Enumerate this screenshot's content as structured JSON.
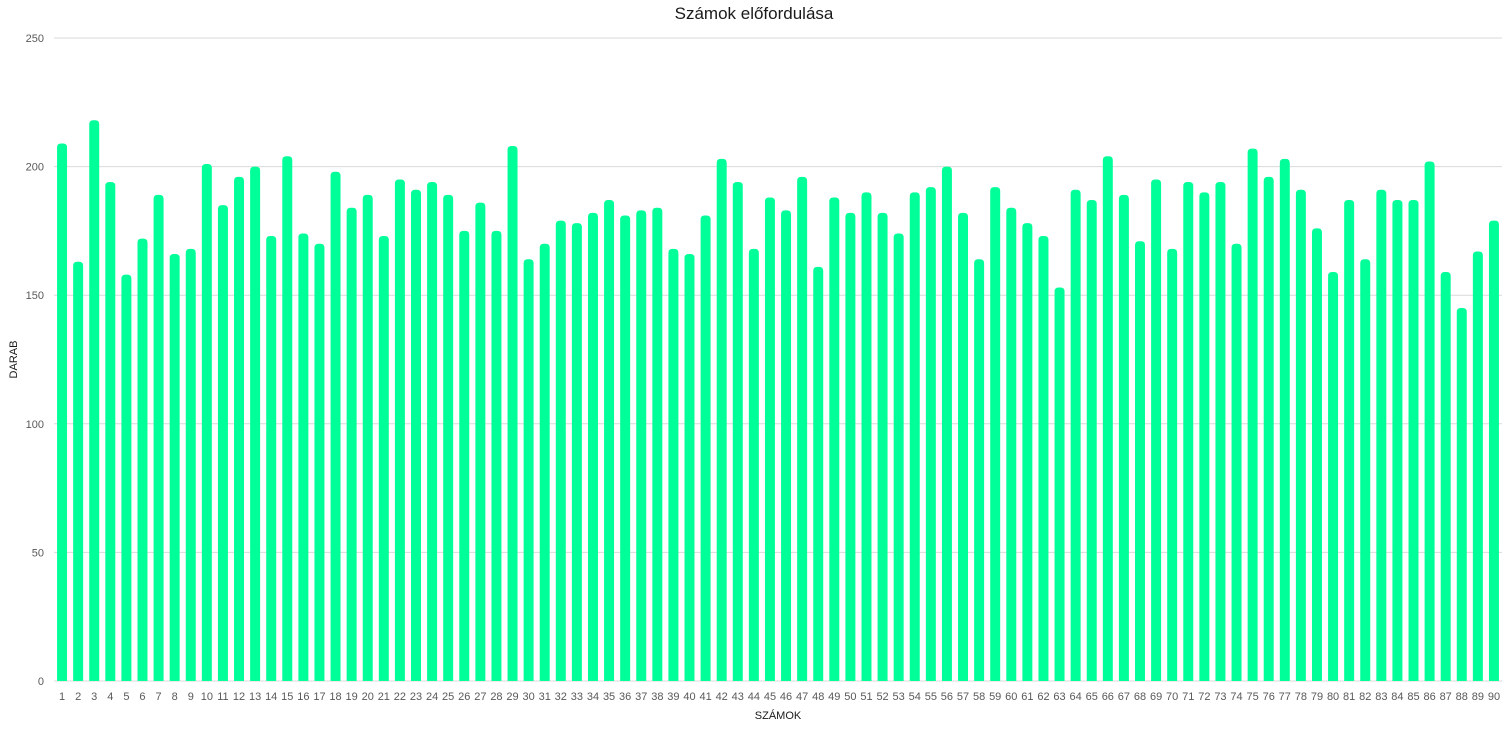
{
  "chart_data": {
    "type": "bar",
    "title": "Számok előfordulása",
    "xlabel": "SZÁMOK",
    "ylabel": "DARAB",
    "ylim": [
      0,
      250
    ],
    "yticks": [
      0,
      50,
      100,
      150,
      200,
      250
    ],
    "grid": true,
    "bar_color": "#00FF99",
    "categories": [
      "1",
      "2",
      "3",
      "4",
      "5",
      "6",
      "7",
      "8",
      "9",
      "10",
      "11",
      "12",
      "13",
      "14",
      "15",
      "16",
      "17",
      "18",
      "19",
      "20",
      "21",
      "22",
      "23",
      "24",
      "25",
      "26",
      "27",
      "28",
      "29",
      "30",
      "31",
      "32",
      "33",
      "34",
      "35",
      "36",
      "37",
      "38",
      "39",
      "40",
      "41",
      "42",
      "43",
      "44",
      "45",
      "46",
      "47",
      "48",
      "49",
      "50",
      "51",
      "52",
      "53",
      "54",
      "55",
      "56",
      "57",
      "58",
      "59",
      "60",
      "61",
      "62",
      "63",
      "64",
      "65",
      "66",
      "67",
      "68",
      "69",
      "70",
      "71",
      "72",
      "73",
      "74",
      "75",
      "76",
      "77",
      "78",
      "79",
      "80",
      "81",
      "82",
      "83",
      "84",
      "85",
      "86",
      "87",
      "88",
      "89",
      "90"
    ],
    "values": [
      209,
      163,
      218,
      194,
      158,
      172,
      189,
      166,
      168,
      201,
      185,
      196,
      200,
      173,
      204,
      174,
      170,
      198,
      184,
      189,
      173,
      195,
      191,
      194,
      189,
      175,
      186,
      175,
      208,
      164,
      170,
      179,
      178,
      182,
      187,
      181,
      183,
      184,
      168,
      166,
      181,
      203,
      194,
      168,
      188,
      183,
      196,
      161,
      188,
      182,
      190,
      182,
      174,
      190,
      192,
      200,
      182,
      164,
      192,
      184,
      178,
      173,
      153,
      191,
      187,
      204,
      189,
      171,
      195,
      168,
      194,
      190,
      194,
      170,
      207,
      196,
      203,
      191,
      176,
      159,
      187,
      164,
      191,
      187,
      187,
      202,
      159,
      145,
      167,
      179
    ]
  }
}
